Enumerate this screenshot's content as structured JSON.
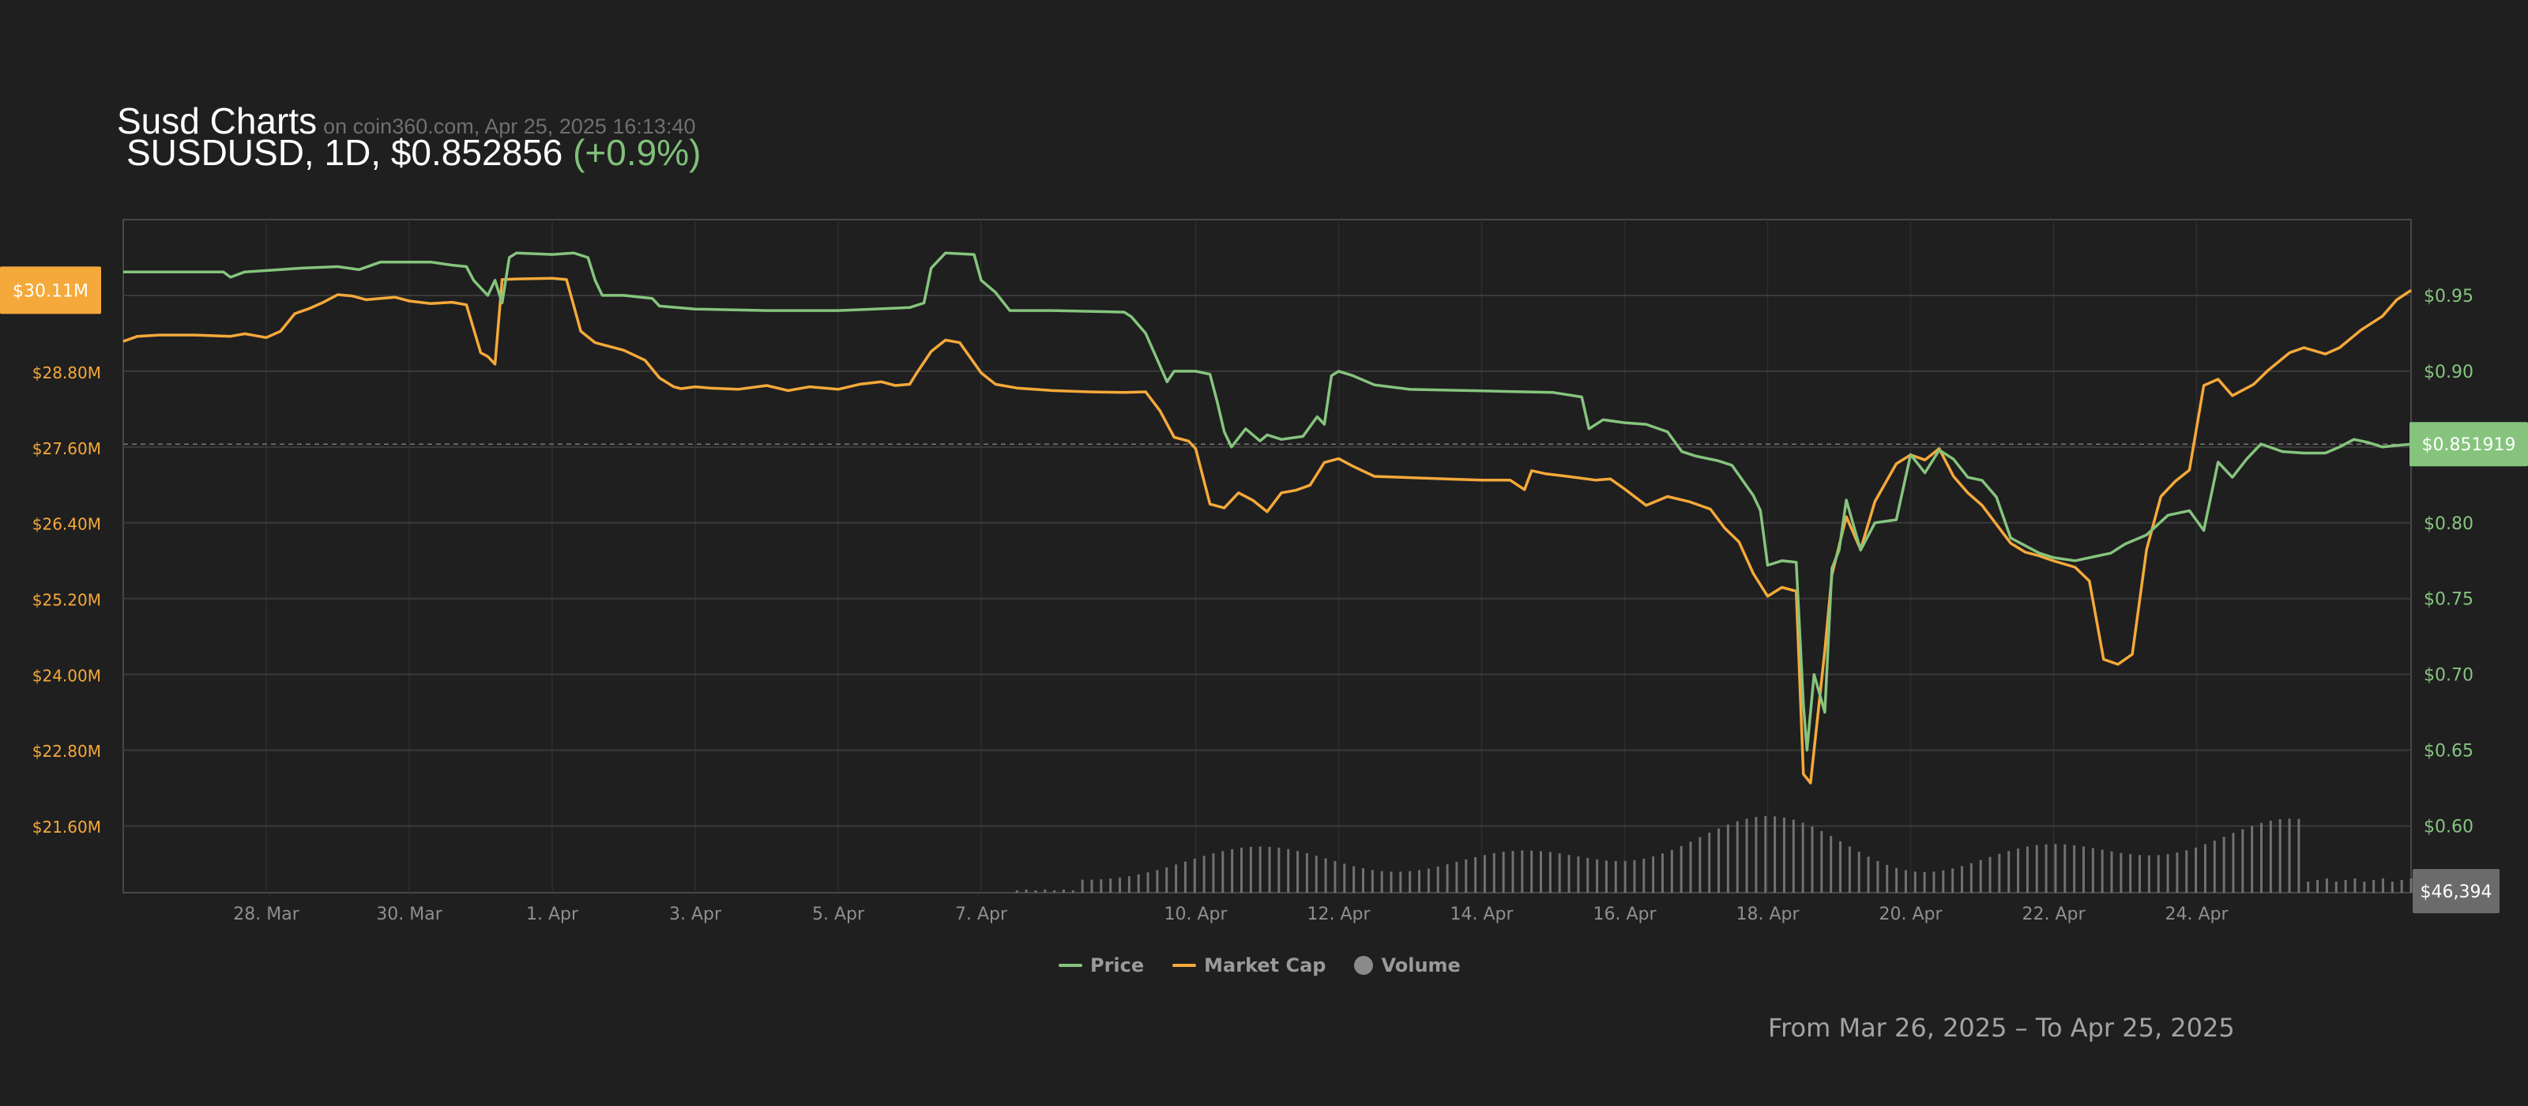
{
  "header": {
    "title": "Susd Charts",
    "source": "on coin360.com, Apr 25, 2025 16:13:40",
    "pair_line": "SUSDUSD, 1D, $0.852856",
    "change": "(+0.9%)"
  },
  "legend": {
    "price": "Price",
    "market_cap": "Market Cap",
    "volume": "Volume"
  },
  "range_text": "From Mar 26, 2025 – To Apr 25, 2025",
  "colors": {
    "background": "#1f1f1f",
    "price": "#86c47e",
    "market_cap": "#f5a93a",
    "volume": "#7a7a7a",
    "grid": "#3a3a3a"
  },
  "chart_data": {
    "type": "line",
    "x_start": "2025-03-26",
    "x_end": "2025-04-25",
    "x_tick_labels": [
      "28. Mar",
      "30. Mar",
      "1. Apr",
      "3. Apr",
      "5. Apr",
      "7. Apr",
      "10. Apr",
      "12. Apr",
      "14. Apr",
      "16. Apr",
      "18. Apr",
      "20. Apr",
      "22. Apr",
      "24. Apr"
    ],
    "x_tick_days": [
      2,
      4,
      6,
      8,
      10,
      12,
      15,
      17,
      19,
      21,
      23,
      25,
      27,
      29
    ],
    "y_right": {
      "label_values": [
        0.6,
        0.65,
        0.7,
        0.75,
        0.8,
        0.85,
        0.9,
        0.95
      ],
      "tick_labels": [
        "$0.60",
        "$0.65",
        "$0.70",
        "$0.75",
        "$0.80",
        "$0.85",
        "$0.90",
        "$0.95"
      ],
      "ylim": [
        0.556,
        1.0
      ]
    },
    "y_left": {
      "tick_labels": [
        "$21.60M",
        "$22.80M",
        "$24.00M",
        "$25.20M",
        "$26.40M",
        "$27.60M",
        "$28.80M",
        "$30.11M"
      ],
      "tick_values": [
        21.6,
        22.8,
        24.0,
        25.2,
        26.4,
        27.6,
        28.8
      ],
      "ylim": [
        20.56,
        31.23
      ]
    },
    "current_price_label": "$0.851919",
    "current_price": 0.8519,
    "current_mcap_label": "$30.11M",
    "current_mcap": 30.11,
    "current_volume_label": "$46,394",
    "series": [
      {
        "name": "Price",
        "axis": "right",
        "points": [
          [
            0.0,
            0.9655
          ],
          [
            1.4,
            0.9655
          ],
          [
            1.5,
            0.962
          ],
          [
            1.7,
            0.9655
          ],
          [
            2.2,
            0.967
          ],
          [
            2.5,
            0.968
          ],
          [
            3.0,
            0.969
          ],
          [
            3.3,
            0.967
          ],
          [
            3.6,
            0.972
          ],
          [
            4.0,
            0.972
          ],
          [
            4.3,
            0.972
          ],
          [
            4.6,
            0.97
          ],
          [
            4.8,
            0.969
          ],
          [
            4.9,
            0.96
          ],
          [
            5.0,
            0.955
          ],
          [
            5.1,
            0.95
          ],
          [
            5.2,
            0.96
          ],
          [
            5.3,
            0.945
          ],
          [
            5.4,
            0.975
          ],
          [
            5.5,
            0.978
          ],
          [
            6.0,
            0.977
          ],
          [
            6.3,
            0.978
          ],
          [
            6.5,
            0.975
          ],
          [
            6.6,
            0.96
          ],
          [
            6.7,
            0.95
          ],
          [
            7.0,
            0.95
          ],
          [
            7.4,
            0.948
          ],
          [
            7.5,
            0.943
          ],
          [
            8.0,
            0.941
          ],
          [
            9.0,
            0.94
          ],
          [
            10.0,
            0.94
          ],
          [
            10.5,
            0.941
          ],
          [
            11.0,
            0.942
          ],
          [
            11.2,
            0.945
          ],
          [
            11.3,
            0.968
          ],
          [
            11.5,
            0.978
          ],
          [
            11.9,
            0.977
          ],
          [
            12.0,
            0.96
          ],
          [
            12.2,
            0.952
          ],
          [
            12.4,
            0.94
          ],
          [
            12.6,
            0.94
          ],
          [
            13.0,
            0.94
          ],
          [
            14.0,
            0.939
          ],
          [
            14.1,
            0.936
          ],
          [
            14.3,
            0.925
          ],
          [
            14.6,
            0.893
          ],
          [
            14.7,
            0.9
          ],
          [
            15.0,
            0.9
          ],
          [
            15.2,
            0.898
          ],
          [
            15.3,
            0.88
          ],
          [
            15.4,
            0.86
          ],
          [
            15.5,
            0.85
          ],
          [
            15.7,
            0.862
          ],
          [
            15.9,
            0.854
          ],
          [
            16.0,
            0.858
          ],
          [
            16.2,
            0.855
          ],
          [
            16.5,
            0.857
          ],
          [
            16.7,
            0.87
          ],
          [
            16.8,
            0.865
          ],
          [
            16.9,
            0.897
          ],
          [
            17.0,
            0.9
          ],
          [
            17.2,
            0.897
          ],
          [
            17.5,
            0.891
          ],
          [
            18.0,
            0.888
          ],
          [
            19.0,
            0.887
          ],
          [
            20.0,
            0.886
          ],
          [
            20.4,
            0.883
          ],
          [
            20.5,
            0.862
          ],
          [
            20.7,
            0.868
          ],
          [
            21.0,
            0.866
          ],
          [
            21.3,
            0.865
          ],
          [
            21.6,
            0.86
          ],
          [
            21.8,
            0.847
          ],
          [
            22.0,
            0.844
          ],
          [
            22.3,
            0.841
          ],
          [
            22.5,
            0.838
          ],
          [
            22.8,
            0.818
          ],
          [
            22.9,
            0.808
          ],
          [
            23.0,
            0.772
          ],
          [
            23.2,
            0.775
          ],
          [
            23.4,
            0.774
          ],
          [
            23.5,
            0.68
          ],
          [
            23.55,
            0.65
          ],
          [
            23.65,
            0.7
          ],
          [
            23.8,
            0.675
          ],
          [
            23.9,
            0.77
          ],
          [
            24.0,
            0.782
          ],
          [
            24.1,
            0.815
          ],
          [
            24.3,
            0.782
          ],
          [
            24.5,
            0.8
          ],
          [
            24.8,
            0.802
          ],
          [
            25.0,
            0.845
          ],
          [
            25.2,
            0.833
          ],
          [
            25.4,
            0.848
          ],
          [
            25.6,
            0.842
          ],
          [
            25.8,
            0.83
          ],
          [
            26.0,
            0.828
          ],
          [
            26.2,
            0.817
          ],
          [
            26.4,
            0.79
          ],
          [
            26.6,
            0.785
          ],
          [
            26.8,
            0.78
          ],
          [
            27.0,
            0.777
          ],
          [
            27.3,
            0.775
          ],
          [
            27.6,
            0.778
          ],
          [
            27.8,
            0.78
          ],
          [
            28.0,
            0.786
          ],
          [
            28.3,
            0.792
          ],
          [
            28.6,
            0.805
          ],
          [
            28.9,
            0.808
          ],
          [
            29.1,
            0.795
          ],
          [
            29.3,
            0.84
          ],
          [
            29.5,
            0.83
          ],
          [
            29.7,
            0.842
          ],
          [
            29.9,
            0.852
          ],
          [
            30.2,
            0.847
          ],
          [
            30.5,
            0.846
          ],
          [
            30.8,
            0.846
          ],
          [
            31.0,
            0.85
          ],
          [
            31.2,
            0.855
          ],
          [
            31.4,
            0.853
          ],
          [
            31.6,
            0.85
          ],
          [
            31.8,
            0.851
          ],
          [
            32.0,
            0.8519
          ]
        ]
      },
      {
        "name": "Market Cap",
        "axis": "left",
        "points": [
          [
            0.0,
            29.3
          ],
          [
            0.2,
            29.38
          ],
          [
            0.5,
            29.4
          ],
          [
            1.0,
            29.4
          ],
          [
            1.5,
            29.38
          ],
          [
            1.7,
            29.42
          ],
          [
            2.0,
            29.36
          ],
          [
            2.2,
            29.46
          ],
          [
            2.4,
            29.74
          ],
          [
            2.6,
            29.82
          ],
          [
            2.8,
            29.92
          ],
          [
            3.0,
            30.04
          ],
          [
            3.2,
            30.02
          ],
          [
            3.4,
            29.96
          ],
          [
            3.6,
            29.98
          ],
          [
            3.8,
            30.0
          ],
          [
            4.0,
            29.94
          ],
          [
            4.3,
            29.9
          ],
          [
            4.6,
            29.92
          ],
          [
            4.8,
            29.88
          ],
          [
            5.0,
            29.12
          ],
          [
            5.1,
            29.06
          ],
          [
            5.2,
            28.94
          ],
          [
            5.3,
            30.28
          ],
          [
            5.5,
            30.29
          ],
          [
            6.0,
            30.3
          ],
          [
            6.2,
            30.28
          ],
          [
            6.4,
            29.46
          ],
          [
            6.6,
            29.28
          ],
          [
            7.0,
            29.16
          ],
          [
            7.3,
            29.0
          ],
          [
            7.5,
            28.72
          ],
          [
            7.7,
            28.58
          ],
          [
            7.8,
            28.55
          ],
          [
            8.0,
            28.58
          ],
          [
            8.2,
            28.56
          ],
          [
            8.6,
            28.54
          ],
          [
            9.0,
            28.6
          ],
          [
            9.3,
            28.52
          ],
          [
            9.6,
            28.58
          ],
          [
            10.0,
            28.54
          ],
          [
            10.3,
            28.62
          ],
          [
            10.6,
            28.66
          ],
          [
            10.8,
            28.6
          ],
          [
            11.0,
            28.62
          ],
          [
            11.1,
            28.8
          ],
          [
            11.3,
            29.14
          ],
          [
            11.5,
            29.32
          ],
          [
            11.7,
            29.28
          ],
          [
            11.9,
            28.96
          ],
          [
            12.0,
            28.8
          ],
          [
            12.2,
            28.62
          ],
          [
            12.5,
            28.56
          ],
          [
            13.0,
            28.52
          ],
          [
            13.5,
            28.5
          ],
          [
            14.0,
            28.49
          ],
          [
            14.3,
            28.5
          ],
          [
            14.5,
            28.2
          ],
          [
            14.7,
            27.78
          ],
          [
            14.9,
            27.72
          ],
          [
            15.0,
            27.6
          ],
          [
            15.2,
            26.72
          ],
          [
            15.4,
            26.66
          ],
          [
            15.6,
            26.9
          ],
          [
            15.8,
            26.78
          ],
          [
            16.0,
            26.6
          ],
          [
            16.2,
            26.9
          ],
          [
            16.4,
            26.94
          ],
          [
            16.6,
            27.02
          ],
          [
            16.8,
            27.38
          ],
          [
            17.0,
            27.44
          ],
          [
            17.2,
            27.32
          ],
          [
            17.5,
            27.16
          ],
          [
            18.0,
            27.14
          ],
          [
            18.5,
            27.12
          ],
          [
            19.0,
            27.1
          ],
          [
            19.4,
            27.1
          ],
          [
            19.6,
            26.95
          ],
          [
            19.7,
            27.25
          ],
          [
            19.9,
            27.2
          ],
          [
            20.2,
            27.16
          ],
          [
            20.6,
            27.1
          ],
          [
            20.8,
            27.12
          ],
          [
            21.0,
            26.96
          ],
          [
            21.3,
            26.7
          ],
          [
            21.6,
            26.84
          ],
          [
            21.9,
            26.76
          ],
          [
            22.2,
            26.64
          ],
          [
            22.4,
            26.34
          ],
          [
            22.6,
            26.12
          ],
          [
            22.8,
            25.62
          ],
          [
            23.0,
            25.26
          ],
          [
            23.2,
            25.4
          ],
          [
            23.4,
            25.34
          ],
          [
            23.5,
            22.44
          ],
          [
            23.6,
            22.3
          ],
          [
            23.8,
            24.4
          ],
          [
            23.9,
            25.6
          ],
          [
            24.1,
            26.52
          ],
          [
            24.3,
            26.0
          ],
          [
            24.5,
            26.76
          ],
          [
            24.8,
            27.36
          ],
          [
            25.0,
            27.5
          ],
          [
            25.2,
            27.42
          ],
          [
            25.4,
            27.6
          ],
          [
            25.6,
            27.16
          ],
          [
            25.8,
            26.9
          ],
          [
            26.0,
            26.7
          ],
          [
            26.2,
            26.4
          ],
          [
            26.4,
            26.1
          ],
          [
            26.6,
            25.96
          ],
          [
            26.8,
            25.9
          ],
          [
            27.0,
            25.82
          ],
          [
            27.3,
            25.72
          ],
          [
            27.5,
            25.5
          ],
          [
            27.7,
            24.26
          ],
          [
            27.9,
            24.18
          ],
          [
            28.1,
            24.34
          ],
          [
            28.3,
            26.0
          ],
          [
            28.5,
            26.84
          ],
          [
            28.7,
            27.08
          ],
          [
            28.9,
            27.26
          ],
          [
            29.1,
            28.6
          ],
          [
            29.3,
            28.7
          ],
          [
            29.5,
            28.44
          ],
          [
            29.8,
            28.62
          ],
          [
            30.0,
            28.84
          ],
          [
            30.3,
            29.12
          ],
          [
            30.5,
            29.2
          ],
          [
            30.8,
            29.1
          ],
          [
            31.0,
            29.2
          ],
          [
            31.3,
            29.48
          ],
          [
            31.6,
            29.7
          ],
          [
            31.8,
            29.96
          ],
          [
            32.0,
            30.11
          ]
        ]
      },
      {
        "name": "Volume",
        "axis": "volume",
        "bars_start_day": 12.5,
        "bars_end_day": 32.0,
        "bar_count": 150
      }
    ],
    "grid": true,
    "legend_position": "bottom-center"
  }
}
